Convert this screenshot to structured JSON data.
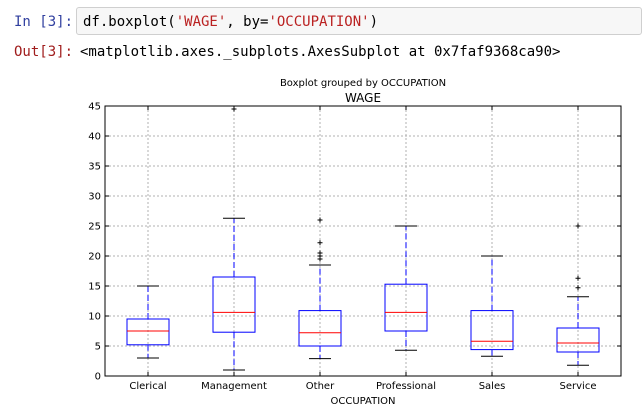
{
  "notebook": {
    "input_prompt": "In [3]:",
    "output_prompt": "Out[3]:",
    "code_prefix": "df.boxplot(",
    "code_arg1": "'WAGE'",
    "code_sep": ", by=",
    "code_arg2": "'OCCUPATION'",
    "code_suffix": ")",
    "output_text": "<matplotlib.axes._subplots.AxesSubplot at 0x7faf9368ca90>"
  },
  "colors": {
    "box": "#0000ff",
    "median": "#ff0000",
    "whisker": "#0000ff",
    "cap": "#000000",
    "flier": "#000000",
    "grid": "#b0b0b0",
    "prompt_in": "#303f9f",
    "prompt_out": "#a01d1d",
    "string": "#ba2121"
  },
  "chart_data": {
    "type": "box",
    "suptitle": "Boxplot grouped by OCCUPATION",
    "title": "WAGE",
    "xlabel": "OCCUPATION",
    "ylabel": "",
    "ylim": [
      0,
      45
    ],
    "yticks": [
      0,
      5,
      10,
      15,
      20,
      25,
      30,
      35,
      40,
      45
    ],
    "grid": true,
    "categories": [
      "Clerical",
      "Management",
      "Other",
      "Professional",
      "Sales",
      "Service"
    ],
    "boxes": [
      {
        "whislo": 3.0,
        "q1": 5.2,
        "median": 7.5,
        "q3": 9.5,
        "whishi": 15.0,
        "fliers": []
      },
      {
        "whislo": 1.0,
        "q1": 7.3,
        "median": 10.6,
        "q3": 16.5,
        "whishi": 26.3,
        "fliers": [
          44.5
        ]
      },
      {
        "whislo": 2.9,
        "q1": 5.0,
        "median": 7.2,
        "q3": 10.9,
        "whishi": 18.5,
        "fliers": [
          19.5,
          20.0,
          20.5,
          22.2,
          26.0
        ]
      },
      {
        "whislo": 4.3,
        "q1": 7.5,
        "median": 10.6,
        "q3": 15.3,
        "whishi": 25.0,
        "fliers": []
      },
      {
        "whislo": 3.3,
        "q1": 4.4,
        "median": 5.8,
        "q3": 10.9,
        "whishi": 20.0,
        "fliers": []
      },
      {
        "whislo": 1.8,
        "q1": 4.0,
        "median": 5.5,
        "q3": 8.0,
        "whishi": 13.2,
        "fliers": [
          14.7,
          16.3,
          25.0
        ]
      }
    ]
  }
}
